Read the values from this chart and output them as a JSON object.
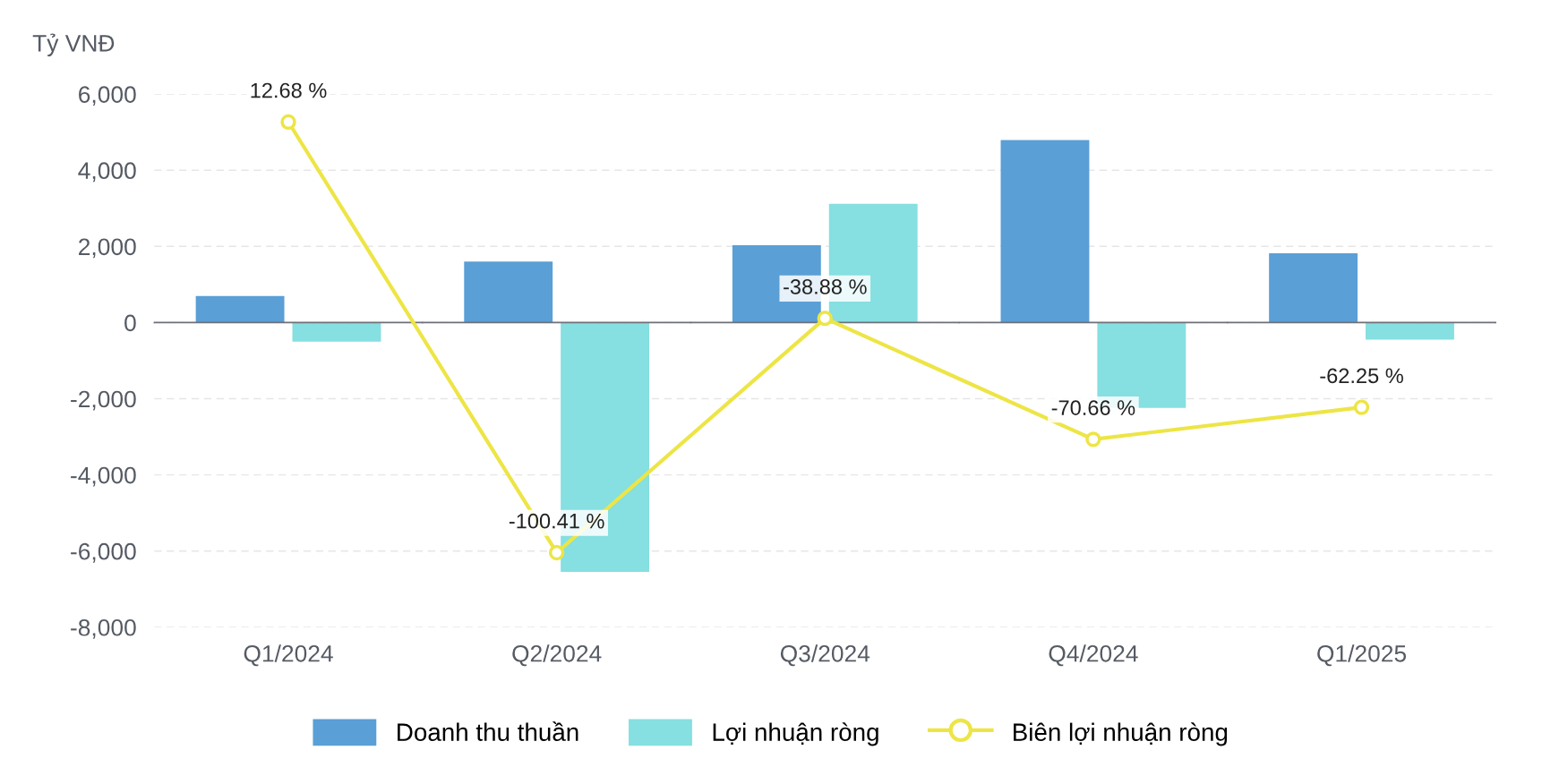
{
  "chart_data": {
    "type": "bar",
    "ylabel": "Tỷ VNĐ",
    "categories": [
      "Q1/2024",
      "Q2/2024",
      "Q3/2024",
      "Q4/2024",
      "Q1/2025"
    ],
    "series": [
      {
        "name": "Doanh thu thuần",
        "color": "#5a9fd6",
        "values": [
          700,
          1600,
          2030,
          4790,
          1820
        ]
      },
      {
        "name": "Lợi nhuận ròng",
        "color": "#86dfe0",
        "values": [
          -500,
          -6550,
          3120,
          -2240,
          -450
        ]
      },
      {
        "name": "Biên lợi nhuận ròng",
        "type": "line",
        "axis": "y2",
        "color": "#ede545",
        "marker": "circle",
        "values": [
          12.68,
          -100.41,
          -38.88,
          -70.66,
          -62.25
        ],
        "value_labels": [
          "12.68 %",
          "-100.41 %",
          "-38.88 %",
          "-70.66 %",
          "-62.25 %"
        ]
      }
    ],
    "ylim": [
      -8000,
      6000
    ],
    "yticks": [
      {
        "value": -8000,
        "label": "-8,000"
      },
      {
        "value": -6000,
        "label": "-6,000"
      },
      {
        "value": -4000,
        "label": "-4,000"
      },
      {
        "value": -2000,
        "label": "-2,000"
      },
      0,
      {
        "value": 2000,
        "label": "2,000"
      },
      {
        "value": 4000,
        "label": "4,000"
      },
      {
        "value": 6000,
        "label": "6,000"
      }
    ],
    "y2lim": [
      -120,
      20
    ],
    "grid": "y",
    "legend": "bottom"
  }
}
